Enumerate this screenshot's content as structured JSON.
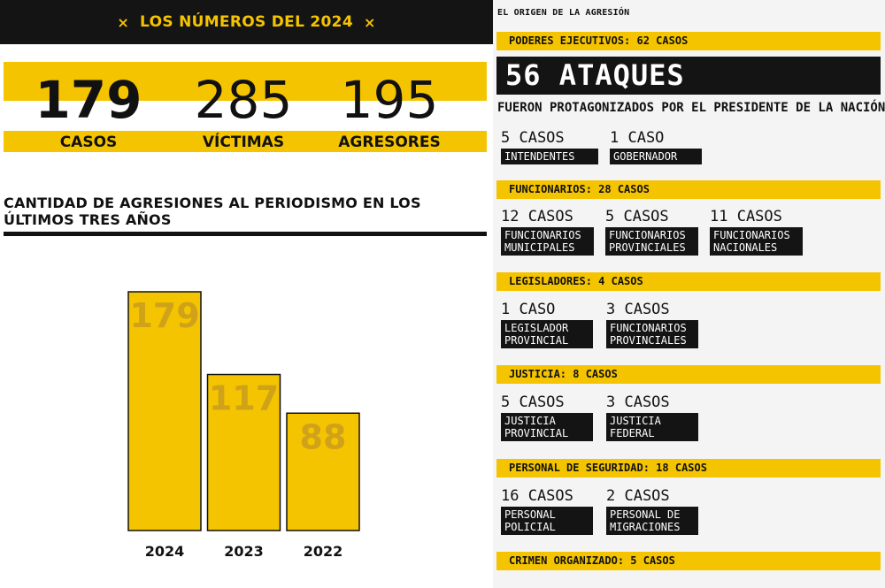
{
  "left": {
    "banner": {
      "star": "×",
      "title": "LOS NÚMEROS DEL 2024"
    },
    "stats": [
      {
        "value": "179",
        "label": "CASOS"
      },
      {
        "value": "285",
        "label": "VÍCTIMAS"
      },
      {
        "value": "195",
        "label": "AGRESORES"
      }
    ],
    "chart_title": "CANTIDAD DE AGRESIONES AL PERIODISMO EN LOS ÚLTIMOS TRES AÑOS"
  },
  "chart_data": {
    "type": "bar",
    "title": "CANTIDAD DE AGRESIONES AL PERIODISMO EN LOS ÚLTIMOS TRES AÑOS",
    "categories": [
      "2024",
      "2023",
      "2022"
    ],
    "values": [
      179,
      117,
      88
    ],
    "xlabel": "",
    "ylabel": "",
    "grid": false,
    "bar_color": "#f5c400",
    "label_color": "#cfa21a"
  },
  "right": {
    "kicker": "EL ORIGEN DE LA AGRESIÓN",
    "highlight": {
      "section": "PODERES EJECUTIVOS: 62 CASOS",
      "big": "56 ATAQUES",
      "sub": "FUERON PROTAGONIZADOS POR EL PRESIDENTE DE LA NACIÓN"
    },
    "sections": [
      {
        "items": [
          {
            "count": "5 CASOS",
            "tag": "INTENDENTES"
          },
          {
            "count": "1 CASO",
            "tag": "GOBERNADOR"
          }
        ]
      },
      {
        "title": "FUNCIONARIOS: 28 CASOS",
        "items": [
          {
            "count": "12 CASOS",
            "tag": "FUNCIONARIOS MUNICIPALES"
          },
          {
            "count": "5 CASOS",
            "tag": "FUNCIONARIOS PROVINCIALES"
          },
          {
            "count": "11 CASOS",
            "tag": "FUNCIONARIOS NACIONALES"
          }
        ]
      },
      {
        "title": "LEGISLADORES: 4 CASOS",
        "items": [
          {
            "count": "1 CASO",
            "tag": "LEGISLADOR PROVINCIAL"
          },
          {
            "count": "3 CASOS",
            "tag": "FUNCIONARIOS PROVINCIALES"
          }
        ]
      },
      {
        "title": "JUSTICIA: 8 CASOS",
        "items": [
          {
            "count": "5 CASOS",
            "tag": "JUSTICIA PROVINCIAL"
          },
          {
            "count": "3 CASOS",
            "tag": "JUSTICIA FEDERAL"
          }
        ]
      },
      {
        "title": "PERSONAL DE SEGURIDAD: 18 CASOS",
        "items": [
          {
            "count": "16 CASOS",
            "tag": "PERSONAL POLICIAL"
          },
          {
            "count": "2 CASOS",
            "tag": "PERSONAL DE MIGRACIONES"
          }
        ]
      },
      {
        "title": "CRIMEN ORGANIZADO: 5 CASOS"
      }
    ]
  },
  "colors": {
    "accent": "#f5c400",
    "dark": "#141414",
    "muted_label": "#cfa21a"
  }
}
